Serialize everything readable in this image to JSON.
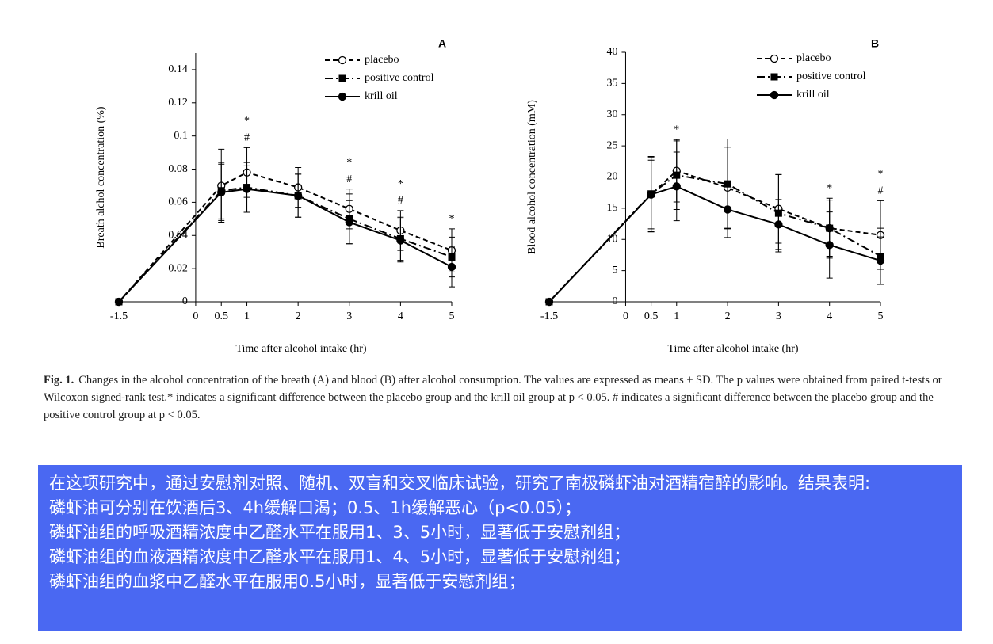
{
  "chart_data": [
    {
      "type": "line",
      "panel": "A",
      "ylabel": "Breath alchol concentration (%)",
      "xlabel": "Time after alcohol intake (hr)",
      "x": [
        -1.5,
        0.5,
        1,
        2,
        3,
        4,
        5
      ],
      "xlim": [
        -1.5,
        5
      ],
      "xticks": [
        -1.5,
        0,
        0.5,
        1,
        2,
        3,
        4,
        5
      ],
      "ylim": [
        0,
        0.15
      ],
      "yticks": [
        0,
        0.02,
        0.04,
        0.06,
        0.08,
        0.1,
        0.12,
        0.14
      ],
      "series": [
        {
          "name": "placebo",
          "color": "#000000",
          "linestyle": "dashed",
          "marker": "open-circle",
          "values": [
            0,
            0.07,
            0.078,
            0.069,
            0.056,
            0.043,
            0.031
          ],
          "errors": [
            0,
            0.022,
            0.015,
            0.012,
            0.012,
            0.012,
            0.013
          ]
        },
        {
          "name": "positive control",
          "color": "#000000",
          "linestyle": "dashdot",
          "marker": "square",
          "values": [
            0,
            0.067,
            0.069,
            0.064,
            0.05,
            0.038,
            0.027
          ],
          "errors": [
            0,
            0.017,
            0.015,
            0.013,
            0.015,
            0.013,
            0.012
          ]
        },
        {
          "name": "krill oil",
          "color": "#000000",
          "linestyle": "solid",
          "marker": "circle",
          "values": [
            0,
            0.066,
            0.068,
            0.064,
            0.048,
            0.037,
            0.021
          ],
          "errors": [
            0,
            0.017,
            0.014,
            0.013,
            0.013,
            0.013,
            0.012
          ]
        }
      ],
      "annotations": [
        {
          "x": 1,
          "text": "*"
        },
        {
          "x": 1,
          "text": "#"
        },
        {
          "x": 3,
          "text": "*"
        },
        {
          "x": 3,
          "text": "#"
        },
        {
          "x": 4,
          "text": "*"
        },
        {
          "x": 4,
          "text": "#"
        },
        {
          "x": 5,
          "text": "*"
        }
      ]
    },
    {
      "type": "line",
      "panel": "B",
      "ylabel": "Blood alcohol concentration (mM)",
      "xlabel": "Time after alcohol intake (hr)",
      "x": [
        -1.5,
        0.5,
        1,
        2,
        3,
        4,
        5
      ],
      "xlim": [
        -1.5,
        5
      ],
      "xticks": [
        -1.5,
        0,
        0.5,
        1,
        2,
        3,
        4,
        5
      ],
      "ylim": [
        0,
        40
      ],
      "yticks": [
        0,
        5,
        10,
        15,
        20,
        25,
        30,
        35,
        40
      ],
      "series": [
        {
          "name": "placebo",
          "color": "#000000",
          "linestyle": "dashed",
          "marker": "open-circle",
          "values": [
            0,
            17.2,
            21.0,
            18.3,
            14.9,
            11.8,
            10.7
          ],
          "errors": [
            0,
            6.0,
            5.0,
            6.5,
            5.5,
            4.8,
            5.5
          ]
        },
        {
          "name": "positive control",
          "color": "#000000",
          "linestyle": "dashdot",
          "marker": "square",
          "values": [
            0,
            17.3,
            20.3,
            18.9,
            14.2,
            11.8,
            7.3
          ],
          "errors": [
            0,
            6.0,
            5.5,
            7.2,
            6.2,
            4.5,
            4.5
          ]
        },
        {
          "name": "krill oil",
          "color": "#000000",
          "linestyle": "solid",
          "marker": "circle",
          "values": [
            0,
            17.2,
            18.5,
            14.8,
            12.4,
            9.1,
            6.6
          ],
          "errors": [
            0,
            5.5,
            5.5,
            4.5,
            4.0,
            5.3,
            3.8
          ]
        }
      ],
      "annotations": [
        {
          "x": 1,
          "text": "*"
        },
        {
          "x": 4,
          "text": "*"
        },
        {
          "x": 5,
          "text": "*"
        },
        {
          "x": 5,
          "text": "#"
        }
      ]
    }
  ],
  "caption": {
    "label": "Fig. 1.",
    "text": "Changes in the alcohol concentration of the breath (A) and blood (B) after alcohol consumption. The values are expressed as means ± SD. The p values were obtained from paired t-tests or Wilcoxon signed-rank test.* indicates a significant difference between the placebo group and the krill oil group at p < 0.05. # indicates a significant difference between the placebo group and the positive control group at p < 0.05."
  },
  "summary": {
    "lines": [
      "在这项研究中，通过安慰剂对照、随机、双盲和交叉临床试验，研究了南极磷虾油对酒精宿醉的影响。结果表明:",
      "磷虾油可分别在饮酒后3、4h缓解口渴；0.5、1h缓解恶心（p<0.05）；",
      "磷虾油组的呼吸酒精浓度中乙醛水平在服用1、3、5小时，显著低于安慰剂组；",
      "磷虾油组的血液酒精浓度中乙醛水平在服用1、4、5小时，显著低于安慰剂组；",
      "磷虾油组的血浆中乙醛水平在服用0.5小时，显著低于安慰剂组；"
    ]
  }
}
